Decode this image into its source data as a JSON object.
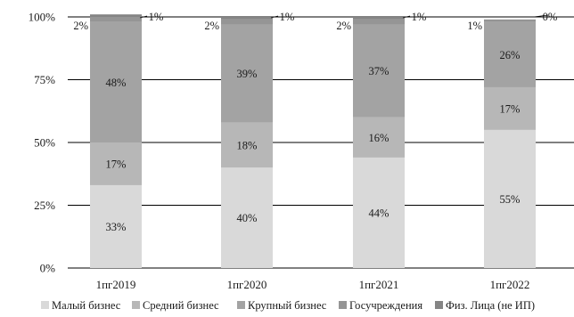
{
  "chart_data": {
    "type": "bar",
    "stacked": true,
    "normalized": true,
    "categories": [
      "1пг2019",
      "1пг2020",
      "1пг2021",
      "1пг2022"
    ],
    "y_ticks": [
      "0%",
      "25%",
      "50%",
      "75%",
      "100%"
    ],
    "ylim": [
      0,
      100
    ],
    "grid": true,
    "legend_position": "bottom",
    "series": [
      {
        "name": "Малый бизнес",
        "color": "#d9d9d9",
        "values": [
          33,
          40,
          44,
          55
        ],
        "labels": [
          "33%",
          "40%",
          "44%",
          "55%"
        ]
      },
      {
        "name": "Средний бизнес",
        "color": "#b7b7b7",
        "values": [
          17,
          18,
          16,
          17
        ],
        "labels": [
          "17%",
          "18%",
          "16%",
          "17%"
        ]
      },
      {
        "name": "Крупный бизнес",
        "color": "#a3a3a3",
        "values": [
          48,
          39,
          37,
          26
        ],
        "labels": [
          "48%",
          "39%",
          "37%",
          "26%"
        ]
      },
      {
        "name": "Госучреждения",
        "color": "#959595",
        "values": [
          2,
          2,
          2,
          1
        ],
        "labels": [
          "2%",
          "2%",
          "2%",
          "1%"
        ]
      },
      {
        "name": "Физ. Лица (не ИП)",
        "color": "#858585",
        "values": [
          1,
          1,
          1,
          0
        ],
        "labels": [
          "1%",
          "1%",
          "1%",
          "0%"
        ]
      }
    ]
  }
}
